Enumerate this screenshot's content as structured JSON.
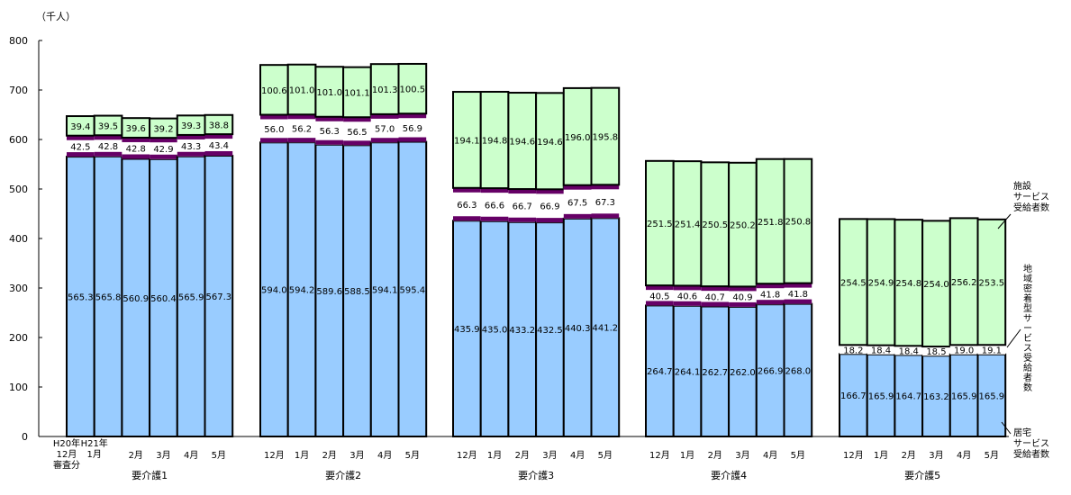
{
  "chart_data": {
    "type": "bar",
    "stacked": true,
    "ylabel": "（千人）",
    "ylim": [
      0,
      800
    ],
    "yticks": [
      0,
      100,
      200,
      300,
      400,
      500,
      600,
      700,
      800
    ],
    "grid": false,
    "month_labels": [
      [
        "H20年",
        "12月",
        "審査分"
      ],
      [
        "H21年",
        "1月"
      ],
      [
        "2月"
      ],
      [
        "3月"
      ],
      [
        "4月"
      ],
      [
        "5月"
      ]
    ],
    "month_labels_other": [
      "12月",
      "1月",
      "2月",
      "3月",
      "4月",
      "5月"
    ],
    "groups": [
      {
        "name": "要介護1",
        "居宅": [
          565.3,
          565.8,
          560.9,
          560.4,
          565.9,
          567.3
        ],
        "地域密着型": [
          42.5,
          42.8,
          42.8,
          42.9,
          43.3,
          43.4
        ],
        "施設": [
          39.4,
          39.5,
          39.6,
          39.2,
          39.3,
          38.8
        ]
      },
      {
        "name": "要介護2",
        "居宅": [
          594.0,
          594.2,
          589.6,
          588.5,
          594.1,
          595.4
        ],
        "地域密着型": [
          56.0,
          56.2,
          56.3,
          56.5,
          57.0,
          56.9
        ],
        "施設": [
          100.6,
          101.0,
          101.0,
          101.1,
          101.3,
          100.5
        ]
      },
      {
        "name": "要介護3",
        "居宅": [
          435.9,
          435.0,
          433.2,
          432.5,
          440.3,
          441.2
        ],
        "地域密着型": [
          66.3,
          66.6,
          66.7,
          66.9,
          67.5,
          67.3
        ],
        "施設": [
          194.1,
          194.8,
          194.6,
          194.6,
          196.0,
          195.8
        ]
      },
      {
        "name": "要介護4",
        "居宅": [
          264.7,
          264.1,
          262.7,
          262.0,
          266.9,
          268.0
        ],
        "地域密着型": [
          40.5,
          40.6,
          40.7,
          40.9,
          41.8,
          41.8
        ],
        "施設": [
          251.5,
          251.4,
          250.5,
          250.2,
          251.8,
          250.8
        ]
      },
      {
        "name": "要介護5",
        "居宅": [
          166.7,
          165.9,
          164.7,
          163.2,
          165.9,
          165.9
        ],
        "地域密着型": [
          18.2,
          18.4,
          18.4,
          18.5,
          19.0,
          19.1
        ],
        "施設": [
          254.5,
          254.9,
          254.8,
          254.0,
          256.2,
          253.5
        ]
      }
    ],
    "series": [
      {
        "key": "居宅",
        "name": "居宅サービス受給者数",
        "lines": [
          "居宅",
          "サービス",
          "受給者数"
        ],
        "color": "#99ccff"
      },
      {
        "key": "地域密着型",
        "name": "地域密着型サービス受給者数",
        "lines": [
          "地",
          "域",
          "密",
          "着",
          "型",
          "サ",
          "ー",
          "ビ",
          "ス",
          "受",
          "給",
          "者",
          "数"
        ],
        "color": "#ffffff",
        "edge_color": "#660066"
      },
      {
        "key": "施設",
        "name": "施設サービス受給者数",
        "lines": [
          "施設",
          "サービス",
          "受給者数"
        ],
        "color": "#ccffcc"
      }
    ],
    "legend": "right, leader lines"
  }
}
